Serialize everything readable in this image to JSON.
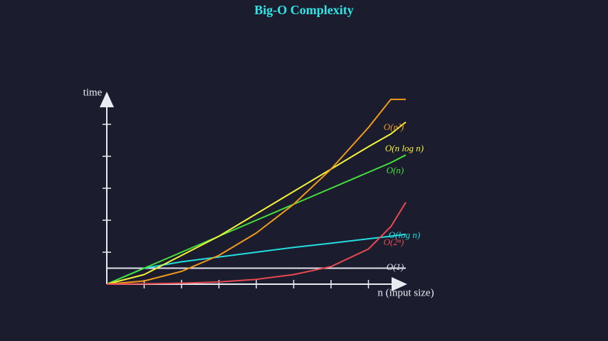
{
  "chart_data": {
    "type": "line",
    "title": "Big-O Complexity",
    "y_label": "time",
    "x_label": "n (input size)",
    "x": [
      0,
      1,
      2,
      3,
      4,
      5,
      6,
      7,
      7.6,
      8
    ],
    "xlim": [
      0,
      8
    ],
    "ylim": [
      0,
      6
    ],
    "xticks": [
      1,
      2,
      3,
      4,
      5,
      6,
      7
    ],
    "yticks": [
      1,
      2,
      3,
      4,
      5
    ],
    "series": [
      {
        "name": "O(1)",
        "color": "#dfe3ea",
        "values": [
          0.5,
          0.5,
          0.5,
          0.5,
          0.5,
          0.5,
          0.5,
          0.5,
          0.5,
          0.5
        ]
      },
      {
        "name": "O(log n)",
        "color": "#22dede",
        "values": [
          0,
          0.5,
          0.7,
          0.85,
          1.0,
          1.15,
          1.28,
          1.42,
          1.5,
          1.56
        ]
      },
      {
        "name": "O(n)",
        "color": "#44e03a",
        "values": [
          0,
          0.5,
          1.0,
          1.5,
          2.0,
          2.5,
          3.0,
          3.5,
          3.8,
          4.04
        ]
      },
      {
        "name": "O(n log n)",
        "color": "#f2f23a",
        "values": [
          0,
          0.3,
          0.9,
          1.5,
          2.2,
          2.9,
          3.6,
          4.3,
          4.7,
          5.07
        ]
      },
      {
        "name": "O(n²)",
        "color": "#f09a1a",
        "values": [
          0,
          0.1,
          0.4,
          0.9,
          1.6,
          2.5,
          3.6,
          4.9,
          5.78,
          5.78
        ]
      },
      {
        "name": "O(2ⁿ)",
        "color": "#e64a50",
        "values": [
          0,
          0.01,
          0.03,
          0.07,
          0.15,
          0.3,
          0.55,
          1.1,
          1.8,
          2.56
        ]
      }
    ]
  }
}
